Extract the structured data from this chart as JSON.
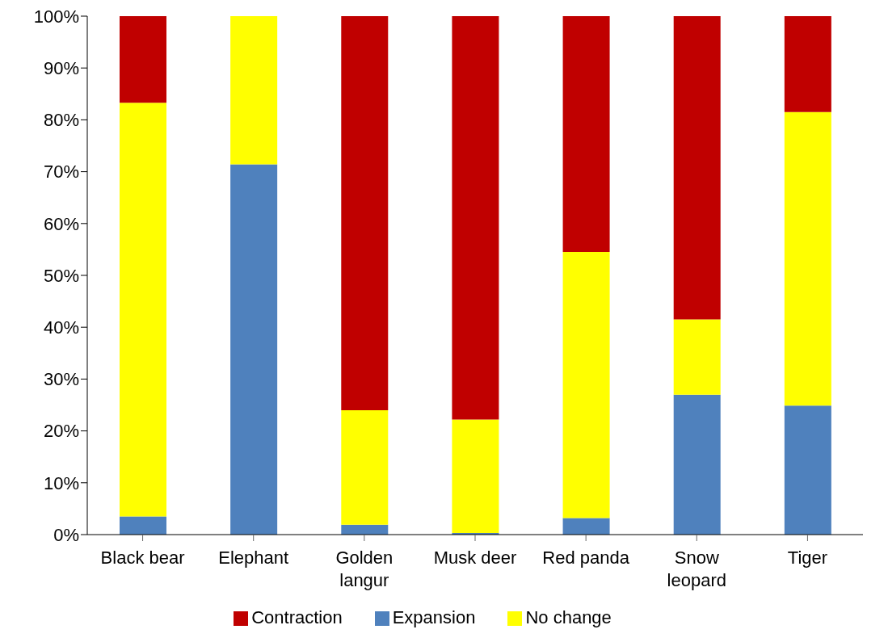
{
  "chart_data": {
    "type": "bar",
    "stacked": true,
    "categories": [
      "Black bear",
      "Elephant",
      "Golden langur",
      "Musk deer",
      "Red panda",
      "Snow leopard",
      "Tiger"
    ],
    "series": [
      {
        "name": "Expansion",
        "color": "#4f81bd",
        "values": [
          3.5,
          71.4,
          1.9,
          0.3,
          3.2,
          27.0,
          24.9
        ]
      },
      {
        "name": "No change",
        "color": "#ffff00",
        "values": [
          79.8,
          28.6,
          22.1,
          21.9,
          51.3,
          14.5,
          56.6
        ]
      },
      {
        "name": "Contraction",
        "color": "#c00000",
        "values": [
          16.7,
          0,
          76.0,
          77.8,
          45.5,
          58.5,
          18.5
        ]
      }
    ],
    "ylim": [
      0,
      100
    ],
    "yticks": [
      {
        "value": 0,
        "label": "0%"
      },
      {
        "value": 10,
        "label": "10%"
      },
      {
        "value": 20,
        "label": "20%"
      },
      {
        "value": 30,
        "label": "30%"
      },
      {
        "value": 40,
        "label": "40%"
      },
      {
        "value": 50,
        "label": "50%"
      },
      {
        "value": 60,
        "label": "60%"
      },
      {
        "value": 70,
        "label": "70%"
      },
      {
        "value": 80,
        "label": "80%"
      },
      {
        "value": 90,
        "label": "90%"
      },
      {
        "value": 100,
        "label": "100%"
      }
    ],
    "grid": false,
    "legend": "bottom"
  }
}
